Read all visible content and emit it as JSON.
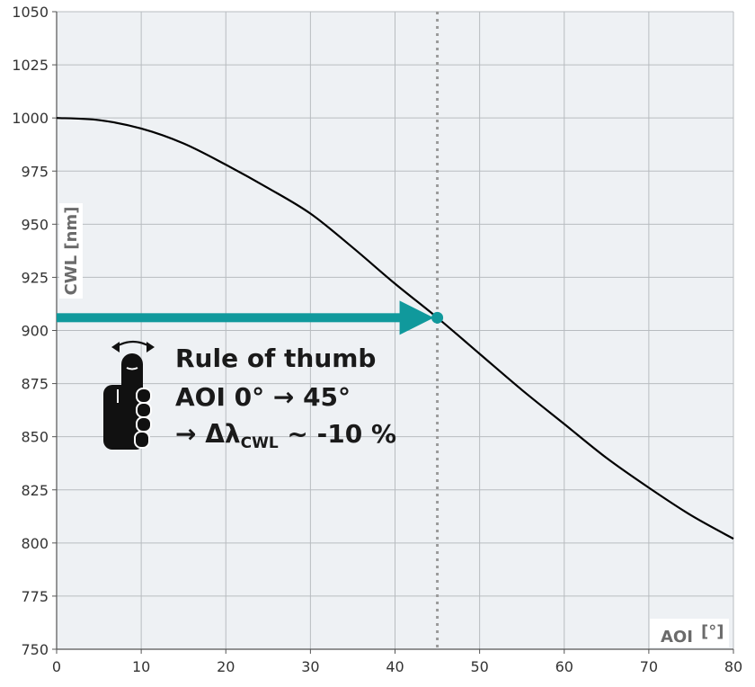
{
  "chart_data": {
    "type": "line",
    "xlabel": "AOI",
    "xunit": "[°]",
    "ylabel": "CWL [nm]",
    "xlim": [
      0,
      80
    ],
    "ylim": [
      750,
      1050
    ],
    "xticks": [
      0,
      10,
      20,
      30,
      40,
      50,
      60,
      70,
      80
    ],
    "yticks": [
      750,
      775,
      800,
      825,
      850,
      875,
      900,
      925,
      950,
      975,
      1000,
      1025,
      1050
    ],
    "grid": true,
    "series": [
      {
        "x": [
          0,
          5,
          10,
          15,
          20,
          25,
          30,
          35,
          40,
          45,
          50,
          55,
          60,
          65,
          70,
          75,
          80
        ],
        "y": [
          1000,
          999,
          995,
          988,
          978,
          967,
          955,
          939,
          922,
          906,
          889,
          872,
          856,
          840,
          826,
          813,
          802
        ]
      }
    ],
    "marker": {
      "x": 45,
      "y": 906
    },
    "vline_x": 45,
    "colors": {
      "line": "#000000",
      "accent": "#10999c",
      "background": "#eef1f4",
      "grid": "#b8bcc0",
      "dotted": "#9a9a9a"
    },
    "annotation": {
      "icon": "thumb-rule-icon",
      "line1": "Rule of thumb",
      "line2": "AOI 0° → 45°",
      "line3_prefix": "→ Δλ",
      "line3_subscript": "CWL",
      "line3_suffix": " ~ -10 %"
    }
  }
}
